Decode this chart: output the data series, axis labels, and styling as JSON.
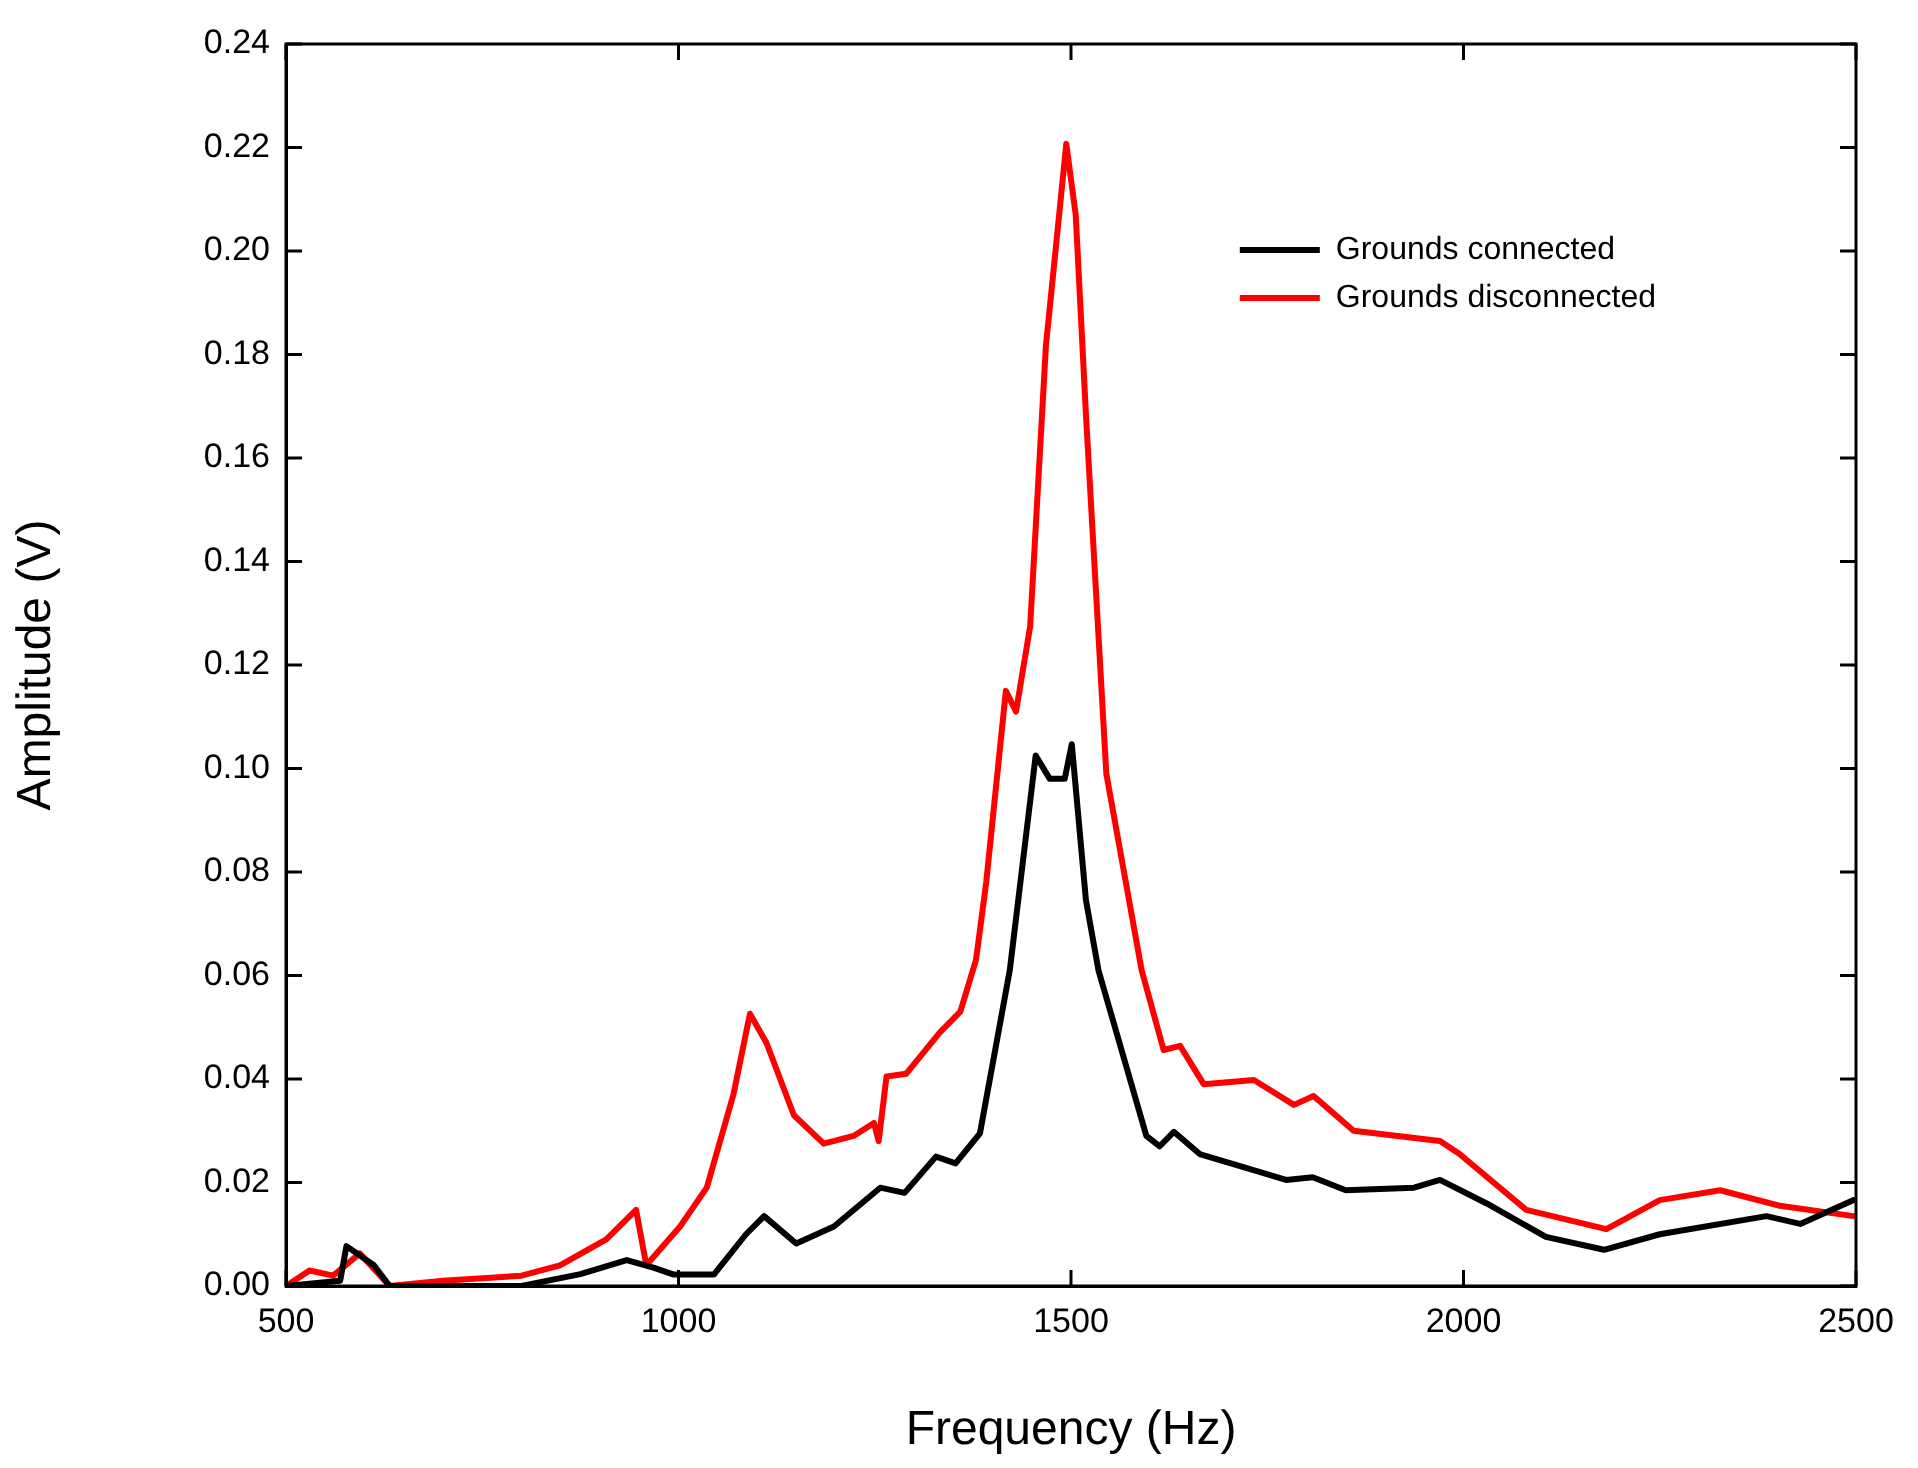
{
  "chart_data": {
    "type": "line",
    "xlabel": "Frequency (Hz)",
    "ylabel": "Amplitude (V)",
    "xlim": [
      500,
      2500
    ],
    "xticks": [
      500,
      1000,
      1500,
      2000,
      2500
    ],
    "ylim": [
      0,
      0.24
    ],
    "yticks": [
      {
        "value": 0,
        "label": "0.00"
      },
      {
        "value": 0.02,
        "label": "0.02"
      },
      {
        "value": 0.04,
        "label": "0.04"
      },
      {
        "value": 0.06,
        "label": "0.06"
      },
      {
        "value": 0.08,
        "label": "0.08"
      },
      {
        "value": 0.1,
        "label": "0.10"
      },
      {
        "value": 0.12,
        "label": "0.12"
      },
      {
        "value": 0.14,
        "label": "0.14"
      },
      {
        "value": 0.16,
        "label": "0.16"
      },
      {
        "value": 0.18,
        "label": "0.18"
      },
      {
        "value": 0.2,
        "label": "0.20"
      },
      {
        "value": 0.22,
        "label": "0.22"
      },
      {
        "value": 0.24,
        "label": "0.24"
      }
    ],
    "grid": false,
    "legend": "top right",
    "marker": "none",
    "line_style": "solid",
    "series": [
      {
        "name": "Grounds connected",
        "color": "#000000",
        "x": [
          500,
          569,
          577,
          612,
          632,
          800,
          875,
          934,
          969,
          994,
          1045,
          1086,
          1109,
          1150,
          1198,
          1257,
          1288,
          1328,
          1353,
          1384,
          1422,
          1455,
          1473,
          1492,
          1501,
          1519,
          1535,
          1596,
          1613,
          1631,
          1664,
          1774,
          1808,
          1850,
          1937,
          1970,
          2029,
          2105,
          2179,
          2250,
          2386,
          2429,
          2497
        ],
        "values": [
          0,
          0.001,
          0.0077,
          0.004,
          0,
          0,
          0.0023,
          0.005,
          0.0035,
          0.0022,
          0.0022,
          0.01,
          0.0135,
          0.0082,
          0.0115,
          0.019,
          0.018,
          0.025,
          0.0237,
          0.0295,
          0.061,
          0.1025,
          0.098,
          0.098,
          0.1047,
          0.0746,
          0.061,
          0.029,
          0.027,
          0.0298,
          0.0255,
          0.0205,
          0.021,
          0.0185,
          0.019,
          0.0205,
          0.016,
          0.0095,
          0.007,
          0.01,
          0.0135,
          0.012,
          0.0166
        ]
      },
      {
        "name": "Grounds disconnected",
        "color": "#ff0000",
        "x": [
          500,
          530,
          560,
          594,
          632,
          700,
          800,
          849,
          908,
          946,
          959,
          1002,
          1036,
          1070,
          1091,
          1112,
          1147,
          1185,
          1223,
          1249,
          1255,
          1265,
          1290,
          1333,
          1359,
          1379,
          1392,
          1417,
          1430,
          1448,
          1468,
          1494,
          1506,
          1519,
          1545,
          1590,
          1618,
          1639,
          1669,
          1733,
          1784,
          1809,
          1860,
          1970,
          1995,
          2080,
          2182,
          2250,
          2327,
          2403,
          2497
        ],
        "values": [
          0,
          0.003,
          0.002,
          0.0063,
          0,
          0.001,
          0.002,
          0.004,
          0.009,
          0.0147,
          0.004,
          0.0115,
          0.019,
          0.037,
          0.0526,
          0.047,
          0.033,
          0.0275,
          0.029,
          0.0315,
          0.028,
          0.0405,
          0.041,
          0.049,
          0.053,
          0.063,
          0.078,
          0.115,
          0.111,
          0.1275,
          0.1816,
          0.2207,
          0.207,
          0.1685,
          0.099,
          0.061,
          0.0456,
          0.0464,
          0.039,
          0.0398,
          0.035,
          0.0367,
          0.03,
          0.028,
          0.0255,
          0.0147,
          0.011,
          0.0166,
          0.0185,
          0.0155,
          0.0135
        ]
      }
    ]
  }
}
